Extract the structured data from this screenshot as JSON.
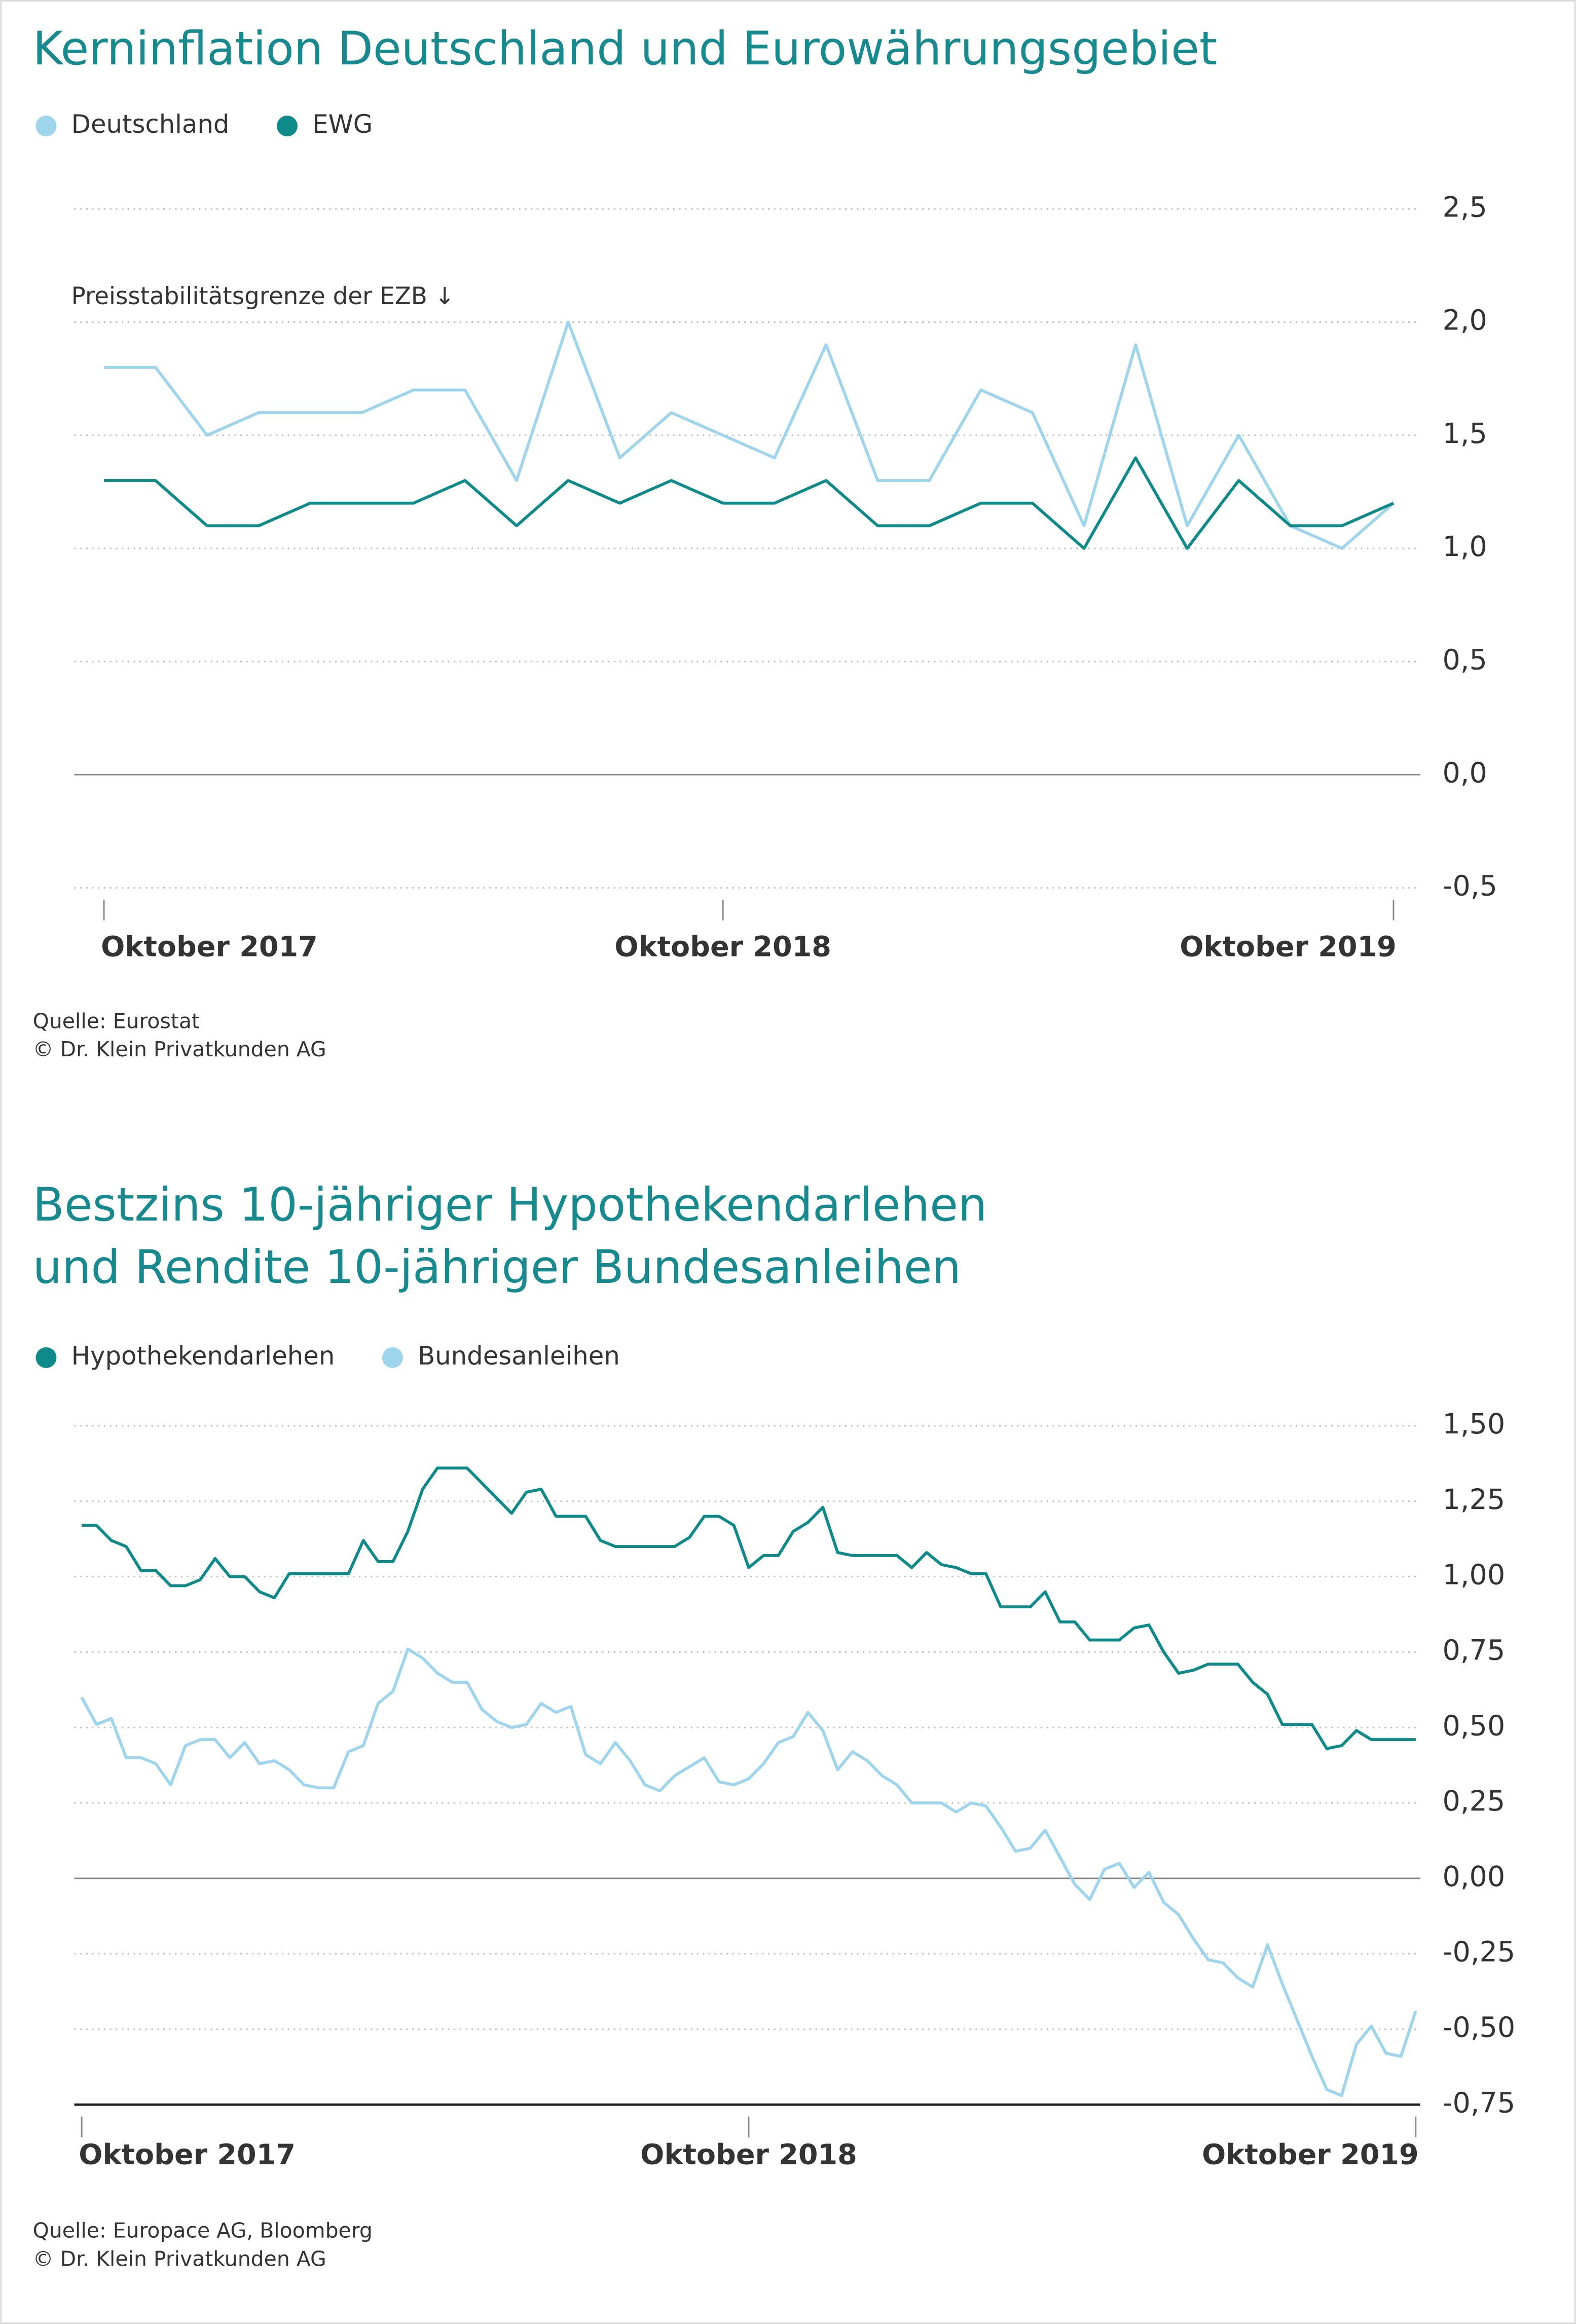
{
  "chart_data": [
    {
      "type": "line",
      "title": [
        "Kerninflation Deutschland und Eurowährungsgebiet"
      ],
      "annotation": "Preisstabilitätsgrenze der EZB ↓",
      "categories": [
        "Oktober 2017",
        null,
        null,
        null,
        null,
        null,
        null,
        null,
        null,
        null,
        null,
        null,
        "Oktober 2018",
        null,
        null,
        null,
        null,
        null,
        null,
        null,
        null,
        null,
        null,
        null,
        null,
        "Oktober 2019"
      ],
      "series": [
        {
          "name": "Deutschland",
          "color": "#9fd5ec",
          "values": [
            1.8,
            1.8,
            1.5,
            1.6,
            1.6,
            1.6,
            1.7,
            1.7,
            1.3,
            2.0,
            1.4,
            1.6,
            1.5,
            1.4,
            1.9,
            1.3,
            1.3,
            1.7,
            1.6,
            1.1,
            1.9,
            1.1,
            1.5,
            1.1,
            1.0,
            1.2
          ]
        },
        {
          "name": "EWG",
          "color": "#0e8a8a",
          "values": [
            1.3,
            1.3,
            1.1,
            1.1,
            1.2,
            1.2,
            1.2,
            1.3,
            1.1,
            1.3,
            1.2,
            1.3,
            1.2,
            1.2,
            1.3,
            1.1,
            1.1,
            1.2,
            1.2,
            1.0,
            1.4,
            1.0,
            1.3,
            1.1,
            1.1,
            1.2
          ]
        }
      ],
      "ylim": [
        -0.5,
        2.5
      ],
      "yticks": [
        {
          "value": -0.5,
          "label": "-0,5"
        },
        {
          "value": 0,
          "label": "0,0"
        },
        {
          "value": 0.5,
          "label": "0,5"
        },
        {
          "value": 1,
          "label": "1,0"
        },
        {
          "value": 1.5,
          "label": "1,5"
        },
        {
          "value": 2,
          "label": "2,0"
        },
        {
          "value": 2.5,
          "label": "2,5"
        }
      ],
      "grid": true,
      "source": [
        "Quelle: Eurostat",
        "© Dr. Klein Privatkunden AG"
      ]
    },
    {
      "type": "line",
      "title": [
        "Bestzins 10-jähriger Hypothekendarlehen",
        "und Rendite 10-jähriger Bundesanleihen"
      ],
      "categories": [
        "Oktober 2017",
        null,
        null,
        null,
        null,
        null,
        null,
        null,
        null,
        null,
        null,
        null,
        null,
        null,
        null,
        null,
        null,
        null,
        null,
        null,
        null,
        null,
        null,
        null,
        null,
        null,
        null,
        null,
        null,
        null,
        null,
        null,
        null,
        null,
        null,
        null,
        null,
        null,
        null,
        null,
        null,
        null,
        null,
        null,
        null,
        "Oktober 2018",
        null,
        null,
        null,
        null,
        null,
        null,
        null,
        null,
        null,
        null,
        null,
        null,
        null,
        null,
        null,
        null,
        null,
        null,
        null,
        null,
        null,
        null,
        null,
        null,
        null,
        null,
        null,
        null,
        null,
        null,
        null,
        null,
        null,
        null,
        null,
        null,
        null,
        null,
        null,
        null,
        null,
        null,
        null,
        null,
        "Oktober 2019"
      ],
      "series": [
        {
          "name": "Hypothekendarlehen",
          "color": "#0e8a8a",
          "values": [
            1.17,
            1.17,
            1.12,
            1.1,
            1.02,
            1.02,
            0.97,
            0.97,
            0.99,
            1.06,
            1.0,
            1.0,
            0.95,
            0.93,
            1.01,
            1.01,
            1.01,
            1.01,
            1.01,
            1.12,
            1.05,
            1.05,
            1.15,
            1.29,
            1.36,
            1.36,
            1.36,
            1.31,
            1.26,
            1.21,
            1.28,
            1.29,
            1.2,
            1.2,
            1.2,
            1.12,
            1.1,
            1.1,
            1.1,
            1.1,
            1.1,
            1.13,
            1.2,
            1.2,
            1.17,
            1.03,
            1.07,
            1.07,
            1.15,
            1.18,
            1.23,
            1.08,
            1.07,
            1.07,
            1.07,
            1.07,
            1.03,
            1.08,
            1.04,
            1.03,
            1.01,
            1.01,
            0.9,
            0.9,
            0.9,
            0.95,
            0.85,
            0.85,
            0.79,
            0.79,
            0.79,
            0.83,
            0.84,
            0.75,
            0.68,
            0.69,
            0.71,
            0.71,
            0.71,
            0.65,
            0.61,
            0.51,
            0.51,
            0.51,
            0.43,
            0.44,
            0.49,
            0.46,
            0.46,
            0.46,
            0.46
          ]
        },
        {
          "name": "Bundesanleihen",
          "color": "#9fd5ec",
          "values": [
            0.6,
            0.51,
            0.53,
            0.4,
            0.4,
            0.38,
            0.31,
            0.44,
            0.46,
            0.46,
            0.4,
            0.45,
            0.38,
            0.39,
            0.36,
            0.31,
            0.3,
            0.3,
            0.42,
            0.44,
            0.58,
            0.62,
            0.76,
            0.73,
            0.68,
            0.65,
            0.65,
            0.56,
            0.52,
            0.5,
            0.51,
            0.58,
            0.55,
            0.57,
            0.41,
            0.38,
            0.45,
            0.39,
            0.31,
            0.29,
            0.34,
            0.37,
            0.4,
            0.32,
            0.31,
            0.33,
            0.38,
            0.45,
            0.47,
            0.55,
            0.49,
            0.36,
            0.42,
            0.39,
            0.34,
            0.31,
            0.25,
            0.25,
            0.25,
            0.22,
            0.25,
            0.24,
            0.17,
            0.09,
            0.1,
            0.16,
            0.07,
            -0.02,
            -0.07,
            0.03,
            0.05,
            -0.03,
            0.02,
            -0.08,
            -0.12,
            -0.2,
            -0.27,
            -0.28,
            -0.33,
            -0.36,
            -0.22,
            -0.35,
            -0.47,
            -0.59,
            -0.7,
            -0.72,
            -0.55,
            -0.49,
            -0.58,
            -0.59,
            -0.44
          ]
        }
      ],
      "ylim": [
        -0.75,
        1.5
      ],
      "yticks": [
        {
          "value": -0.75,
          "label": "-0,75"
        },
        {
          "value": -0.5,
          "label": "-0,50"
        },
        {
          "value": -0.25,
          "label": "-0,25"
        },
        {
          "value": 0,
          "label": "0,00"
        },
        {
          "value": 0.25,
          "label": "0,25"
        },
        {
          "value": 0.5,
          "label": "0,50"
        },
        {
          "value": 0.75,
          "label": "0,75"
        },
        {
          "value": 1,
          "label": "1,00"
        },
        {
          "value": 1.25,
          "label": "1,25"
        },
        {
          "value": 1.5,
          "label": "1,50"
        }
      ],
      "grid": true,
      "source": [
        "Quelle: Europace AG, Bloomberg",
        "© Dr. Klein Privatkunden AG"
      ]
    }
  ]
}
